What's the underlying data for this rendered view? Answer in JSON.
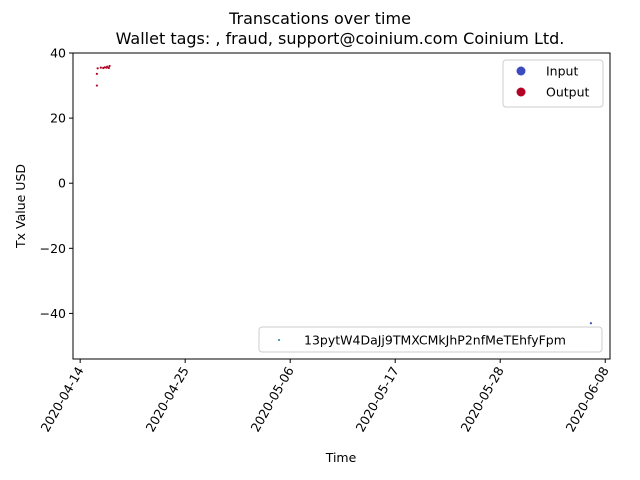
{
  "chart_data": {
    "type": "scatter",
    "title_line1": "Transcations over time",
    "title_line2": "Wallet tags: , fraud, support@coinium.com Coinium Ltd.",
    "xlabel": "Time",
    "ylabel": "Tx Value USD",
    "x_ticks": [
      "2020-04-14",
      "2020-04-25",
      "2020-05-06",
      "2020-05-17",
      "2020-05-28",
      "2020-06-08"
    ],
    "xlim": [
      "2020-04-13T06:00",
      "2020-06-08T12:00"
    ],
    "ylim": [
      -54,
      40
    ],
    "y_ticks": [
      -40,
      -20,
      0,
      20,
      40
    ],
    "grid": false,
    "legend_top": {
      "placement": "top-right",
      "entries": [
        {
          "label": "Input",
          "color": "#3b4cc0"
        },
        {
          "label": "Output",
          "color": "#b40426"
        }
      ]
    },
    "legend_bottom": {
      "placement": "bottom-right",
      "entries": [
        {
          "label": "13pytW4DaJj9TMXCMkJhP2nfMeTEhfyFpm",
          "color": "#1f77b4"
        }
      ]
    },
    "series": [
      {
        "name": "Output",
        "color": "#b40426",
        "points": [
          {
            "x": "2020-04-15T18:00",
            "y": 30.0
          },
          {
            "x": "2020-04-15T18:00",
            "y": 33.6
          },
          {
            "x": "2020-04-15T20:00",
            "y": 35.3
          },
          {
            "x": "2020-04-16T04:00",
            "y": 35.5
          },
          {
            "x": "2020-04-16T10:00",
            "y": 35.4
          },
          {
            "x": "2020-04-16T14:00",
            "y": 35.6
          },
          {
            "x": "2020-04-16T18:00",
            "y": 35.5
          },
          {
            "x": "2020-04-16T20:00",
            "y": 35.8
          },
          {
            "x": "2020-04-17T00:00",
            "y": 35.4
          },
          {
            "x": "2020-04-17T02:00",
            "y": 36.0
          }
        ]
      },
      {
        "name": "Input",
        "color": "#3b4cc0",
        "points": [
          {
            "x": "2020-06-06T12:00",
            "y": -43.0
          }
        ]
      }
    ]
  }
}
